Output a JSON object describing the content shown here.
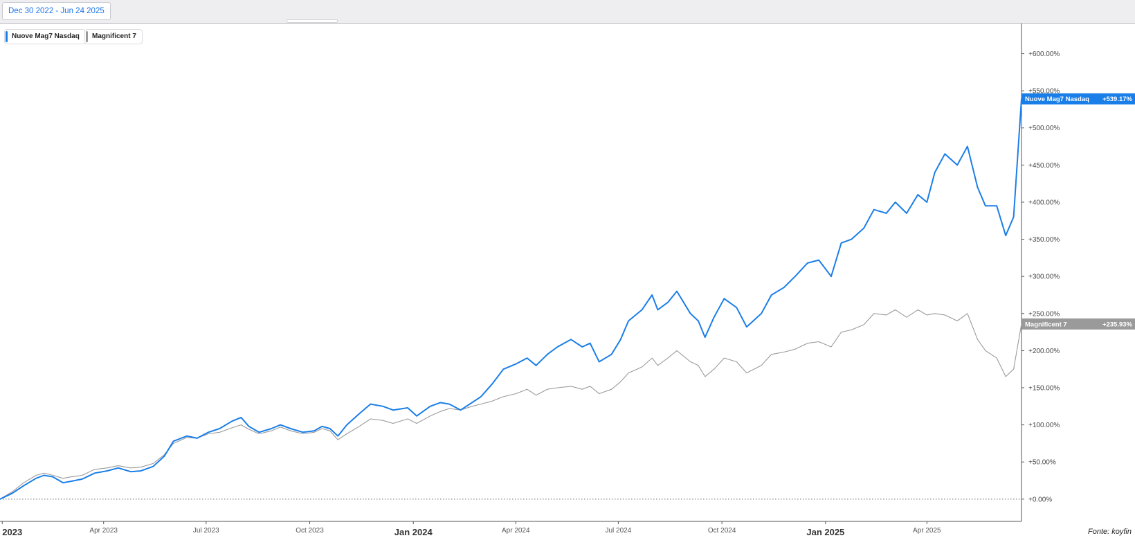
{
  "toolbar": {
    "date_range_label": "Dec 30 2022 - Jun 24 2025"
  },
  "legend": [
    {
      "label": "Nuove Mag7 Nasdaq",
      "color": "#1a7ee8"
    },
    {
      "label": "Magnificent 7",
      "color": "#9a9a9a"
    }
  ],
  "source_note": "Fonte: koyfin",
  "chart_data": {
    "type": "line",
    "x_axis": {
      "start": "2022-12-30",
      "end": "2025-06-24",
      "ticks": [
        {
          "date": "2023-01-01",
          "label": "2023",
          "major": true
        },
        {
          "date": "2023-04-01",
          "label": "Apr 2023",
          "major": false
        },
        {
          "date": "2023-07-01",
          "label": "Jul 2023",
          "major": false
        },
        {
          "date": "2023-10-01",
          "label": "Oct 2023",
          "major": false
        },
        {
          "date": "2024-01-01",
          "label": "Jan 2024",
          "major": true
        },
        {
          "date": "2024-04-01",
          "label": "Apr 2024",
          "major": false
        },
        {
          "date": "2024-07-01",
          "label": "Jul 2024",
          "major": false
        },
        {
          "date": "2024-10-01",
          "label": "Oct 2024",
          "major": false
        },
        {
          "date": "2025-01-01",
          "label": "Jan 2025",
          "major": true
        },
        {
          "date": "2025-04-01",
          "label": "Apr 2025",
          "major": false
        }
      ]
    },
    "y_axis": {
      "min": -30,
      "max": 635,
      "unit": "%",
      "ticks": [
        {
          "value": 0,
          "label": "+0.00%"
        },
        {
          "value": 50,
          "label": "+50.00%"
        },
        {
          "value": 100,
          "label": "+100.00%"
        },
        {
          "value": 150,
          "label": "+150.00%"
        },
        {
          "value": 200,
          "label": "+200.00%"
        },
        {
          "value": 250,
          "label": "+250.00%"
        },
        {
          "value": 300,
          "label": "+300.00%"
        },
        {
          "value": 350,
          "label": "+350.00%"
        },
        {
          "value": 400,
          "label": "+400.00%"
        },
        {
          "value": 450,
          "label": "+450.00%"
        },
        {
          "value": 500,
          "label": "+500.00%"
        },
        {
          "value": 550,
          "label": "+550.00%"
        },
        {
          "value": 600,
          "label": "+600.00%"
        }
      ]
    },
    "grid": false,
    "zero_line": "dotted",
    "series": [
      {
        "name": "Nuove Mag7 Nasdaq",
        "color": "#1a7ee8",
        "last_value_label": "+539.17%",
        "points": [
          [
            "2022-12-30",
            0
          ],
          [
            "2023-01-10",
            8
          ],
          [
            "2023-01-20",
            18
          ],
          [
            "2023-01-31",
            28
          ],
          [
            "2023-02-07",
            32
          ],
          [
            "2023-02-15",
            30
          ],
          [
            "2023-02-24",
            22
          ],
          [
            "2023-03-03",
            24
          ],
          [
            "2023-03-13",
            27
          ],
          [
            "2023-03-24",
            35
          ],
          [
            "2023-04-04",
            38
          ],
          [
            "2023-04-14",
            42
          ],
          [
            "2023-04-25",
            37
          ],
          [
            "2023-05-04",
            38
          ],
          [
            "2023-05-15",
            44
          ],
          [
            "2023-05-25",
            58
          ],
          [
            "2023-06-02",
            78
          ],
          [
            "2023-06-14",
            85
          ],
          [
            "2023-06-23",
            82
          ],
          [
            "2023-07-03",
            90
          ],
          [
            "2023-07-13",
            95
          ],
          [
            "2023-07-24",
            105
          ],
          [
            "2023-08-01",
            110
          ],
          [
            "2023-08-08",
            98
          ],
          [
            "2023-08-17",
            90
          ],
          [
            "2023-08-28",
            95
          ],
          [
            "2023-09-05",
            100
          ],
          [
            "2023-09-14",
            95
          ],
          [
            "2023-09-25",
            90
          ],
          [
            "2023-10-05",
            92
          ],
          [
            "2023-10-12",
            98
          ],
          [
            "2023-10-19",
            95
          ],
          [
            "2023-10-26",
            85
          ],
          [
            "2023-11-03",
            100
          ],
          [
            "2023-11-14",
            115
          ],
          [
            "2023-11-24",
            128
          ],
          [
            "2023-12-05",
            125
          ],
          [
            "2023-12-14",
            120
          ],
          [
            "2023-12-27",
            123
          ],
          [
            "2024-01-04",
            112
          ],
          [
            "2024-01-16",
            125
          ],
          [
            "2024-01-25",
            130
          ],
          [
            "2024-02-02",
            128
          ],
          [
            "2024-02-12",
            120
          ],
          [
            "2024-02-22",
            130
          ],
          [
            "2024-03-01",
            138
          ],
          [
            "2024-03-11",
            155
          ],
          [
            "2024-03-21",
            175
          ],
          [
            "2024-04-01",
            182
          ],
          [
            "2024-04-11",
            190
          ],
          [
            "2024-04-19",
            180
          ],
          [
            "2024-04-29",
            195
          ],
          [
            "2024-05-08",
            205
          ],
          [
            "2024-05-20",
            215
          ],
          [
            "2024-05-30",
            205
          ],
          [
            "2024-06-06",
            210
          ],
          [
            "2024-06-14",
            185
          ],
          [
            "2024-06-25",
            195
          ],
          [
            "2024-07-03",
            215
          ],
          [
            "2024-07-10",
            240
          ],
          [
            "2024-07-22",
            255
          ],
          [
            "2024-07-31",
            275
          ],
          [
            "2024-08-05",
            255
          ],
          [
            "2024-08-14",
            265
          ],
          [
            "2024-08-22",
            280
          ],
          [
            "2024-09-03",
            250
          ],
          [
            "2024-09-10",
            240
          ],
          [
            "2024-09-16",
            218
          ],
          [
            "2024-09-24",
            245
          ],
          [
            "2024-10-03",
            270
          ],
          [
            "2024-10-14",
            258
          ],
          [
            "2024-10-23",
            232
          ],
          [
            "2024-11-05",
            250
          ],
          [
            "2024-11-14",
            275
          ],
          [
            "2024-11-25",
            285
          ],
          [
            "2024-12-05",
            300
          ],
          [
            "2024-12-16",
            318
          ],
          [
            "2024-12-26",
            322
          ],
          [
            "2025-01-06",
            300
          ],
          [
            "2025-01-15",
            345
          ],
          [
            "2025-01-24",
            350
          ],
          [
            "2025-02-04",
            365
          ],
          [
            "2025-02-13",
            390
          ],
          [
            "2025-02-24",
            385
          ],
          [
            "2025-03-04",
            400
          ],
          [
            "2025-03-14",
            385
          ],
          [
            "2025-03-24",
            410
          ],
          [
            "2025-04-01",
            400
          ],
          [
            "2025-04-08",
            440
          ],
          [
            "2025-04-17",
            465
          ],
          [
            "2025-04-28",
            450
          ],
          [
            "2025-05-07",
            475
          ],
          [
            "2025-05-16",
            420
          ],
          [
            "2025-05-23",
            395
          ],
          [
            "2025-06-02",
            395
          ],
          [
            "2025-06-10",
            355
          ],
          [
            "2025-06-17",
            380
          ],
          [
            "2025-06-24",
            539.17
          ]
        ]
      },
      {
        "name": "Magnificent 7",
        "color": "#9a9a9a",
        "last_value_label": "+235.93%",
        "points": [
          [
            "2022-12-30",
            0
          ],
          [
            "2023-01-10",
            10
          ],
          [
            "2023-01-20",
            22
          ],
          [
            "2023-01-31",
            32
          ],
          [
            "2023-02-07",
            35
          ],
          [
            "2023-02-15",
            32
          ],
          [
            "2023-02-24",
            28
          ],
          [
            "2023-03-03",
            30
          ],
          [
            "2023-03-13",
            32
          ],
          [
            "2023-03-24",
            40
          ],
          [
            "2023-04-04",
            42
          ],
          [
            "2023-04-14",
            45
          ],
          [
            "2023-04-25",
            42
          ],
          [
            "2023-05-04",
            43
          ],
          [
            "2023-05-15",
            48
          ],
          [
            "2023-05-25",
            60
          ],
          [
            "2023-06-02",
            75
          ],
          [
            "2023-06-14",
            83
          ],
          [
            "2023-06-23",
            82
          ],
          [
            "2023-07-03",
            88
          ],
          [
            "2023-07-13",
            90
          ],
          [
            "2023-07-24",
            96
          ],
          [
            "2023-08-01",
            100
          ],
          [
            "2023-08-08",
            94
          ],
          [
            "2023-08-17",
            88
          ],
          [
            "2023-08-28",
            92
          ],
          [
            "2023-09-05",
            97
          ],
          [
            "2023-09-14",
            92
          ],
          [
            "2023-09-25",
            88
          ],
          [
            "2023-10-05",
            90
          ],
          [
            "2023-10-12",
            95
          ],
          [
            "2023-10-19",
            92
          ],
          [
            "2023-10-26",
            80
          ],
          [
            "2023-11-03",
            88
          ],
          [
            "2023-11-14",
            98
          ],
          [
            "2023-11-24",
            108
          ],
          [
            "2023-12-05",
            106
          ],
          [
            "2023-12-14",
            102
          ],
          [
            "2023-12-27",
            108
          ],
          [
            "2024-01-04",
            102
          ],
          [
            "2024-01-16",
            112
          ],
          [
            "2024-01-25",
            118
          ],
          [
            "2024-02-02",
            122
          ],
          [
            "2024-02-12",
            120
          ],
          [
            "2024-02-22",
            125
          ],
          [
            "2024-03-01",
            128
          ],
          [
            "2024-03-11",
            132
          ],
          [
            "2024-03-21",
            138
          ],
          [
            "2024-04-01",
            142
          ],
          [
            "2024-04-11",
            148
          ],
          [
            "2024-04-19",
            140
          ],
          [
            "2024-04-29",
            148
          ],
          [
            "2024-05-08",
            150
          ],
          [
            "2024-05-20",
            152
          ],
          [
            "2024-05-30",
            148
          ],
          [
            "2024-06-06",
            152
          ],
          [
            "2024-06-14",
            142
          ],
          [
            "2024-06-25",
            148
          ],
          [
            "2024-07-03",
            158
          ],
          [
            "2024-07-10",
            170
          ],
          [
            "2024-07-22",
            178
          ],
          [
            "2024-07-31",
            190
          ],
          [
            "2024-08-05",
            180
          ],
          [
            "2024-08-14",
            190
          ],
          [
            "2024-08-22",
            200
          ],
          [
            "2024-09-03",
            185
          ],
          [
            "2024-09-10",
            180
          ],
          [
            "2024-09-16",
            165
          ],
          [
            "2024-09-24",
            175
          ],
          [
            "2024-10-03",
            190
          ],
          [
            "2024-10-14",
            185
          ],
          [
            "2024-10-23",
            170
          ],
          [
            "2024-11-05",
            180
          ],
          [
            "2024-11-14",
            195
          ],
          [
            "2024-11-25",
            198
          ],
          [
            "2024-12-05",
            202
          ],
          [
            "2024-12-16",
            210
          ],
          [
            "2024-12-26",
            212
          ],
          [
            "2025-01-06",
            205
          ],
          [
            "2025-01-15",
            225
          ],
          [
            "2025-01-24",
            228
          ],
          [
            "2025-02-04",
            235
          ],
          [
            "2025-02-13",
            250
          ],
          [
            "2025-02-24",
            248
          ],
          [
            "2025-03-04",
            255
          ],
          [
            "2025-03-14",
            245
          ],
          [
            "2025-03-24",
            255
          ],
          [
            "2025-04-01",
            248
          ],
          [
            "2025-04-08",
            250
          ],
          [
            "2025-04-17",
            248
          ],
          [
            "2025-04-28",
            240
          ],
          [
            "2025-05-07",
            250
          ],
          [
            "2025-05-16",
            215
          ],
          [
            "2025-05-23",
            200
          ],
          [
            "2025-06-02",
            190
          ],
          [
            "2025-06-10",
            165
          ],
          [
            "2025-06-17",
            175
          ],
          [
            "2025-06-24",
            235.93
          ]
        ]
      }
    ]
  }
}
